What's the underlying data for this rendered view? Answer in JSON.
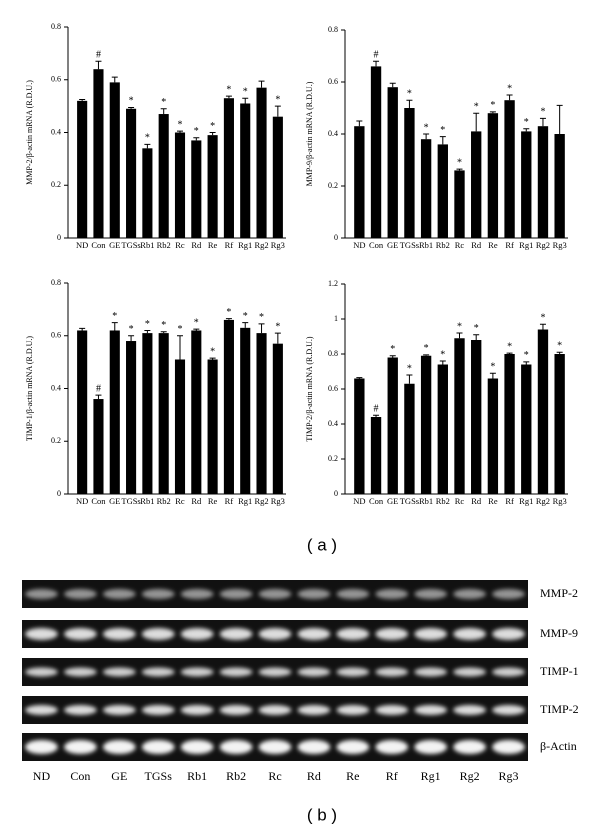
{
  "chart_data": [
    {
      "type": "bar",
      "ylabel": "MMP-2/β-actin mRNA (R.D.U.)",
      "categories": [
        "ND",
        "Con",
        "GE",
        "TGSs",
        "Rb1",
        "Rb2",
        "Rc",
        "Rd",
        "Re",
        "Rf",
        "Rg1",
        "Rg2",
        "Rg3"
      ],
      "values": [
        0.52,
        0.64,
        0.59,
        0.49,
        0.34,
        0.47,
        0.4,
        0.37,
        0.39,
        0.53,
        0.51,
        0.57,
        0.46
      ],
      "errors": [
        0.005,
        0.03,
        0.02,
        0.005,
        0.015,
        0.02,
        0.005,
        0.01,
        0.01,
        0.008,
        0.02,
        0.025,
        0.04
      ],
      "annotations": [
        null,
        "#",
        null,
        "*",
        "*",
        "*",
        "*",
        "*",
        "*",
        "*",
        "*",
        null,
        "*"
      ],
      "ylim": [
        0,
        0.8
      ],
      "yticks": [
        0,
        0.2,
        0.4,
        0.6,
        0.8
      ],
      "color": "#000000"
    },
    {
      "type": "bar",
      "ylabel": "MMP-9/β-actin mRNA (R.D.U.)",
      "categories": [
        "ND",
        "Con",
        "GE",
        "TGSs",
        "Rb1",
        "Rb2",
        "Rc",
        "Rd",
        "Re",
        "Rf",
        "Rg1",
        "Rg2",
        "Rg3"
      ],
      "values": [
        0.43,
        0.66,
        0.58,
        0.5,
        0.38,
        0.36,
        0.26,
        0.41,
        0.48,
        0.53,
        0.41,
        0.43,
        0.4
      ],
      "errors": [
        0.02,
        0.02,
        0.015,
        0.03,
        0.02,
        0.03,
        0.005,
        0.07,
        0.005,
        0.02,
        0.01,
        0.03,
        0.11
      ],
      "annotations": [
        null,
        "#",
        null,
        "*",
        "*",
        "*",
        "*",
        "*",
        "*",
        "*",
        "*",
        "*",
        null
      ],
      "ylim": [
        0,
        0.8
      ],
      "yticks": [
        0,
        0.2,
        0.4,
        0.6,
        0.8
      ],
      "color": "#000000"
    },
    {
      "type": "bar",
      "ylabel": "TIMP-1/β-actin mRNA (R.D.U.)",
      "categories": [
        "ND",
        "Con",
        "GE",
        "TGSs",
        "Rb1",
        "Rb2",
        "Rc",
        "Rd",
        "Re",
        "Rf",
        "Rg1",
        "Rg2",
        "Rg3"
      ],
      "values": [
        0.62,
        0.36,
        0.62,
        0.58,
        0.61,
        0.61,
        0.51,
        0.62,
        0.51,
        0.66,
        0.63,
        0.61,
        0.57
      ],
      "errors": [
        0.008,
        0.015,
        0.03,
        0.02,
        0.01,
        0.005,
        0.09,
        0.005,
        0.005,
        0.005,
        0.02,
        0.035,
        0.04
      ],
      "annotations": [
        null,
        "#",
        "*",
        "*",
        "*",
        "*",
        "*",
        "*",
        "*",
        "*",
        "*",
        "*",
        "*"
      ],
      "ylim": [
        0,
        0.8
      ],
      "yticks": [
        0,
        0.2,
        0.4,
        0.6,
        0.8
      ],
      "color": "#000000"
    },
    {
      "type": "bar",
      "ylabel": "TIMP-2/β-actin mRNA (R.D.U.)",
      "categories": [
        "ND",
        "Con",
        "GE",
        "TGSs",
        "Rb1",
        "Rb2",
        "Rc",
        "Rd",
        "Re",
        "Rf",
        "Rg1",
        "Rg2",
        "Rg3"
      ],
      "values": [
        0.66,
        0.44,
        0.78,
        0.63,
        0.79,
        0.74,
        0.89,
        0.88,
        0.66,
        0.8,
        0.74,
        0.94,
        0.8
      ],
      "errors": [
        0.005,
        0.01,
        0.01,
        0.05,
        0.005,
        0.02,
        0.03,
        0.03,
        0.03,
        0.005,
        0.015,
        0.03,
        0.01
      ],
      "annotations": [
        null,
        "#",
        "*",
        "*",
        "*",
        "*",
        "*",
        "*",
        "*",
        "*",
        "*",
        "*",
        "*"
      ],
      "ylim": [
        0,
        1.2
      ],
      "yticks": [
        0,
        0.2,
        0.4,
        0.6,
        0.8,
        1,
        1.2
      ],
      "color": "#000000"
    }
  ],
  "panel_labels": [
    "( a )",
    "( b )"
  ],
  "gel": {
    "rows": [
      "MMP-2",
      "MMP-9",
      "TIMP-1",
      "TIMP-2",
      "β-Actin"
    ],
    "lanes": [
      "ND",
      "Con",
      "GE",
      "TGSs",
      "Rb1",
      "Rb2",
      "Rc",
      "Rd",
      "Re",
      "Rf",
      "Rg1",
      "Rg2",
      "Rg3"
    ]
  }
}
